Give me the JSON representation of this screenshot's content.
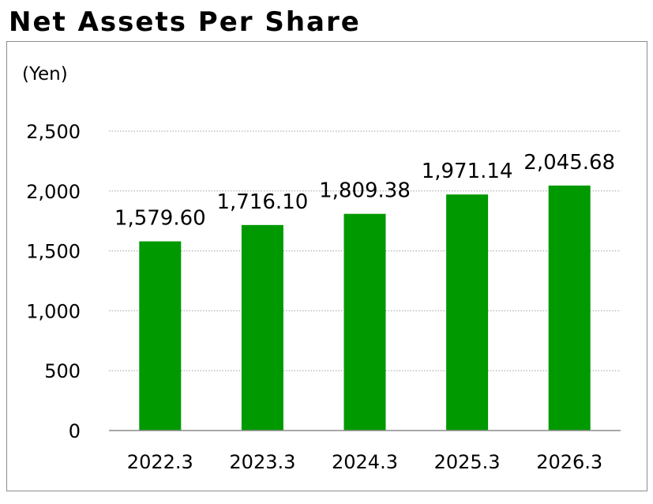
{
  "chart_data": {
    "type": "bar",
    "title": "Net Assets Per Share",
    "unit_label": "(Yen)",
    "categories": [
      "2022.3",
      "2023.3",
      "2024.3",
      "2025.3",
      "2026.3"
    ],
    "values": [
      1579.6,
      1716.1,
      1809.38,
      1971.14,
      2045.68
    ],
    "value_labels": [
      "1,579.60",
      "1,716.10",
      "1,809.38",
      "1,971.14",
      "2,045.68"
    ],
    "ylim": [
      0,
      2500
    ],
    "y_ticks": [
      0,
      500,
      1000,
      1500,
      2000,
      2500
    ],
    "y_tick_labels": [
      "0",
      "500",
      "1,000",
      "1,500",
      "2,000",
      "2,500"
    ],
    "grid": true,
    "bar_color": "#009900",
    "grid_color": "#a0a0a0",
    "axis_color": "#8c8c8c"
  }
}
